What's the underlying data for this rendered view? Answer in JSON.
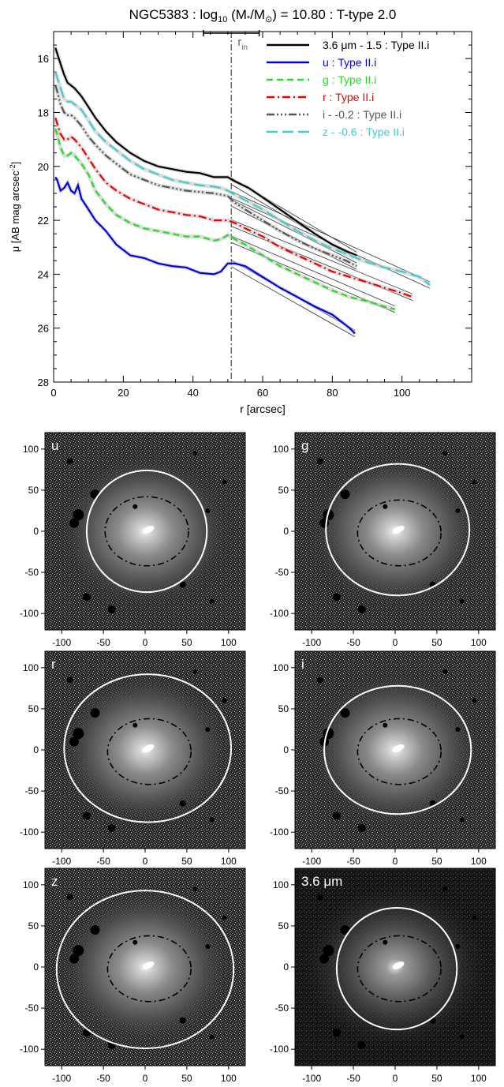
{
  "chart_data": [
    {
      "type": "line",
      "title": "NGC5383 : log",
      "title_sub": "10",
      "title_mid": " (M",
      "title_star": "*",
      "title_slash": "/M",
      "title_sun": "⊙",
      "title_end": ") = 10.80 : T-type 2.0",
      "xlabel": "r [arcsec]",
      "ylabel": "μ [AB mag arcsec",
      "ylabel_sup": "-2",
      "ylabel_end": "]",
      "xlim": [
        0,
        120
      ],
      "ylim": [
        28,
        15
      ],
      "x_ticks": [
        "0",
        "20",
        "40",
        "60",
        "80",
        "100"
      ],
      "y_ticks": [
        "16",
        "18",
        "20",
        "22",
        "24",
        "26",
        "28"
      ],
      "r_in_label": "r",
      "r_in_sub": "in",
      "r_in": 51,
      "r_in_range": [
        43,
        59
      ],
      "legend_position": "top-right",
      "series": [
        {
          "name": "3.6 μm - 1.5 : Type II.i",
          "color": "#000000",
          "dash": "",
          "x": [
            0.5,
            1,
            2,
            3,
            4,
            5,
            6,
            8,
            10,
            12,
            15,
            18,
            22,
            26,
            30,
            34,
            38,
            42,
            46,
            48,
            50,
            52,
            56,
            60,
            65,
            70,
            75,
            80,
            84,
            87
          ],
          "y": [
            15.6,
            15.8,
            16.2,
            16.6,
            16.9,
            17.0,
            17.1,
            17.4,
            17.8,
            18.2,
            18.7,
            19.1,
            19.5,
            19.8,
            20.0,
            20.1,
            20.2,
            20.25,
            20.4,
            20.4,
            20.4,
            20.55,
            20.8,
            21.15,
            21.6,
            22.05,
            22.5,
            22.9,
            23.15,
            23.3
          ]
        },
        {
          "name": "u : Type II.i",
          "color": "#0000dd",
          "dash": "",
          "x": [
            0.5,
            1,
            2,
            3,
            4,
            5,
            6,
            7,
            8,
            10,
            12,
            15,
            18,
            22,
            26,
            30,
            34,
            38,
            42,
            46,
            48,
            50,
            52,
            55,
            60,
            65,
            70,
            75,
            80,
            83,
            85,
            86.5
          ],
          "y": [
            20.4,
            20.5,
            20.9,
            20.8,
            20.6,
            20.9,
            21.0,
            20.7,
            21.2,
            21.6,
            22.0,
            22.4,
            22.9,
            23.3,
            23.4,
            23.6,
            23.7,
            23.75,
            23.95,
            24.0,
            23.9,
            23.6,
            23.6,
            23.7,
            24.1,
            24.5,
            24.85,
            25.2,
            25.5,
            25.8,
            26.0,
            26.2
          ]
        },
        {
          "name": "g : Type II.i",
          "color": "#22dd22",
          "dash": "8 5",
          "x": [
            0.5,
            1,
            2,
            3,
            4,
            5,
            6,
            8,
            10,
            12,
            15,
            18,
            22,
            26,
            30,
            34,
            38,
            42,
            46,
            48,
            50,
            52,
            55,
            60,
            65,
            70,
            75,
            80,
            85,
            90,
            95,
            98
          ],
          "y": [
            18.6,
            18.8,
            19.3,
            19.6,
            19.6,
            19.5,
            19.6,
            19.9,
            20.3,
            20.9,
            21.4,
            21.8,
            22.1,
            22.3,
            22.4,
            22.5,
            22.6,
            22.6,
            22.75,
            22.7,
            22.55,
            22.7,
            22.9,
            23.3,
            23.7,
            24.0,
            24.3,
            24.6,
            24.85,
            25.0,
            25.2,
            25.3
          ]
        },
        {
          "name": "r : Type II.i",
          "color": "#ee0000",
          "dash": "10 4 2 4",
          "x": [
            0.5,
            1,
            2,
            3,
            4,
            5,
            6,
            8,
            10,
            12,
            15,
            18,
            22,
            26,
            30,
            34,
            38,
            42,
            46,
            48,
            50,
            52,
            55,
            60,
            65,
            70,
            75,
            80,
            85,
            90,
            95,
            100,
            103
          ],
          "y": [
            18.2,
            18.4,
            18.8,
            19.0,
            19.0,
            18.9,
            19.0,
            19.3,
            19.7,
            20.1,
            20.6,
            20.9,
            21.2,
            21.4,
            21.6,
            21.7,
            21.8,
            21.85,
            22.0,
            22.0,
            22.0,
            22.1,
            22.3,
            22.6,
            23.0,
            23.3,
            23.6,
            23.9,
            24.1,
            24.3,
            24.5,
            24.7,
            24.85
          ]
        },
        {
          "name": "i - -0.2 : Type II.i",
          "color": "#555555",
          "dash": "10 3 2 3 2 3 2 3",
          "x": [
            0.5,
            1,
            2,
            3,
            4,
            5,
            6,
            8,
            10,
            12,
            15,
            18,
            22,
            26,
            30,
            34,
            38,
            42,
            46,
            48,
            50,
            52,
            55,
            60,
            65,
            70,
            75,
            80,
            84,
            87
          ],
          "y": [
            17.0,
            17.2,
            17.7,
            18.0,
            18.1,
            18.1,
            18.2,
            18.5,
            18.9,
            19.2,
            19.6,
            19.9,
            20.3,
            20.5,
            20.7,
            20.8,
            20.9,
            20.95,
            21.0,
            21.05,
            21.1,
            21.35,
            21.6,
            22.0,
            22.4,
            22.75,
            23.05,
            23.3,
            23.5,
            23.7
          ]
        },
        {
          "name": "z - -0.6 : Type II.i",
          "color": "#44cccc",
          "dash": "14 6",
          "x": [
            0.5,
            1,
            2,
            3,
            4,
            5,
            6,
            8,
            10,
            12,
            15,
            18,
            22,
            26,
            30,
            34,
            38,
            42,
            46,
            48,
            50,
            52,
            55,
            60,
            65,
            70,
            75,
            80,
            85,
            90,
            95,
            100,
            105,
            108
          ],
          "y": [
            16.5,
            16.7,
            17.1,
            17.5,
            17.6,
            17.6,
            17.7,
            17.9,
            18.3,
            18.7,
            19.1,
            19.4,
            19.8,
            20.1,
            20.3,
            20.5,
            20.6,
            20.7,
            20.75,
            20.8,
            20.9,
            21.05,
            21.25,
            21.6,
            22.0,
            22.4,
            22.75,
            23.05,
            23.3,
            23.55,
            23.75,
            23.9,
            24.1,
            24.4
          ]
        }
      ]
    },
    {
      "type": "image-panel",
      "band": "u",
      "x_ticks": [
        "-100",
        "-50",
        "0",
        "50",
        "100"
      ],
      "y_ticks": [
        "100",
        "50",
        "0",
        "-50",
        "-100"
      ],
      "outer_ellipse": {
        "cx": 2,
        "cy": 0,
        "rx": 72,
        "ry": 74
      },
      "inner_ellipse": {
        "cx": 2,
        "cy": 0,
        "rx": 50,
        "ry": 42
      }
    },
    {
      "type": "image-panel",
      "band": "g",
      "x_ticks": [
        "-100",
        "-50",
        "0",
        "50",
        "100"
      ],
      "y_ticks": [
        "100",
        "50",
        "0",
        "-50",
        "-100"
      ],
      "outer_ellipse": {
        "cx": 3,
        "cy": 2,
        "rx": 86,
        "ry": 80
      },
      "inner_ellipse": {
        "cx": 5,
        "cy": -2,
        "rx": 50,
        "ry": 40
      }
    },
    {
      "type": "image-panel",
      "band": "r",
      "x_ticks": [
        "-100",
        "-50",
        "0",
        "50",
        "100"
      ],
      "y_ticks": [
        "100",
        "50",
        "0",
        "-50",
        "-100"
      ],
      "outer_ellipse": {
        "cx": 3,
        "cy": 2,
        "rx": 100,
        "ry": 90
      },
      "inner_ellipse": {
        "cx": 5,
        "cy": -2,
        "rx": 50,
        "ry": 40
      }
    },
    {
      "type": "image-panel",
      "band": "i",
      "x_ticks": [
        "-100",
        "-50",
        "0",
        "50",
        "100"
      ],
      "y_ticks": [
        "100",
        "50",
        "0",
        "-50",
        "-100"
      ],
      "outer_ellipse": {
        "cx": 3,
        "cy": 0,
        "rx": 88,
        "ry": 78
      },
      "inner_ellipse": {
        "cx": 5,
        "cy": -2,
        "rx": 50,
        "ry": 40
      }
    },
    {
      "type": "image-panel",
      "band": "z",
      "x_ticks": [
        "-100",
        "-50",
        "0",
        "50",
        "100"
      ],
      "y_ticks": [
        "100",
        "50",
        "0",
        "-50",
        "-100"
      ],
      "outer_ellipse": {
        "cx": 0,
        "cy": -3,
        "rx": 106,
        "ry": 96
      },
      "inner_ellipse": {
        "cx": 5,
        "cy": -2,
        "rx": 50,
        "ry": 40
      }
    },
    {
      "type": "image-panel",
      "band": "3.6 μm",
      "x_ticks": [
        "-100",
        "-50",
        "0",
        "50",
        "100"
      ],
      "y_ticks": [
        "100",
        "50",
        "0",
        "-50",
        "-100"
      ],
      "outer_ellipse": {
        "cx": 2,
        "cy": -2,
        "rx": 72,
        "ry": 74
      },
      "inner_ellipse": {
        "cx": 5,
        "cy": -2,
        "rx": 50,
        "ry": 40
      }
    }
  ]
}
